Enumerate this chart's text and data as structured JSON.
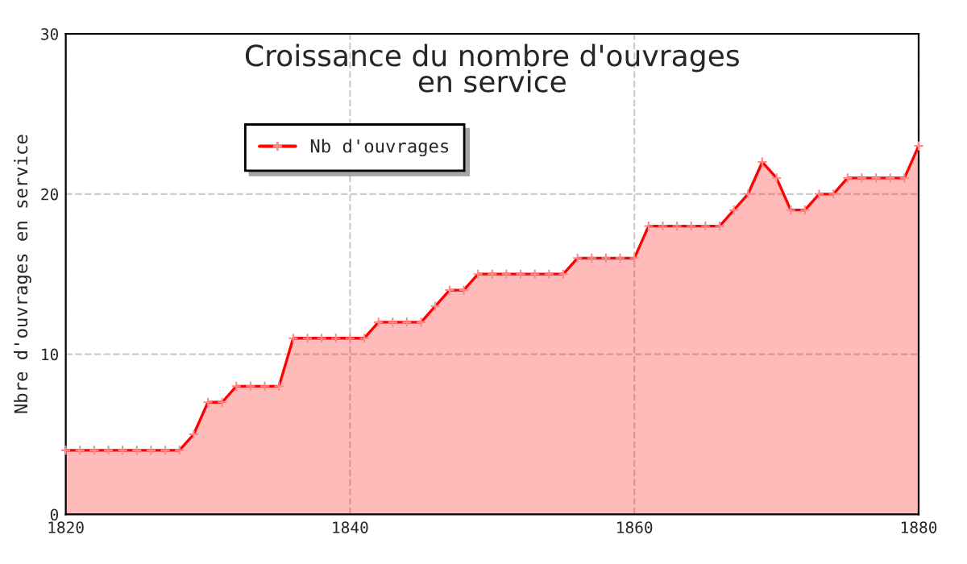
{
  "chart_data": {
    "type": "area",
    "title": "Croissance du nombre d'ouvrages\nen service",
    "ylabel": "Nbre d'ouvrages en service",
    "x": [
      1820,
      1821,
      1822,
      1823,
      1824,
      1825,
      1826,
      1827,
      1828,
      1829,
      1830,
      1831,
      1832,
      1833,
      1834,
      1835,
      1836,
      1837,
      1838,
      1839,
      1840,
      1841,
      1842,
      1843,
      1844,
      1845,
      1846,
      1847,
      1848,
      1849,
      1850,
      1851,
      1852,
      1853,
      1854,
      1855,
      1856,
      1857,
      1858,
      1859,
      1860,
      1861,
      1862,
      1863,
      1864,
      1865,
      1866,
      1867,
      1868,
      1869,
      1870,
      1871,
      1872,
      1873,
      1874,
      1875,
      1876,
      1877,
      1878,
      1879,
      1880
    ],
    "series": [
      {
        "name": "Nb d'ouvrages",
        "color": "#ff0000",
        "values": [
          4,
          4,
          4,
          4,
          4,
          4,
          4,
          4,
          4,
          5,
          7,
          7,
          8,
          8,
          8,
          8,
          11,
          11,
          11,
          11,
          11,
          11,
          12,
          12,
          12,
          12,
          13,
          14,
          14,
          15,
          15,
          15,
          15,
          15,
          15,
          15,
          16,
          16,
          16,
          16,
          16,
          18,
          18,
          18,
          18,
          18,
          18,
          19,
          20,
          22,
          21,
          19,
          19,
          20,
          20,
          21,
          21,
          21,
          21,
          21,
          23
        ]
      }
    ],
    "xlim": [
      1820,
      1880
    ],
    "xticks": [
      1820,
      1840,
      1860,
      1880
    ],
    "ylim": [
      0,
      30
    ],
    "yticks": [
      0,
      10,
      20,
      30
    ],
    "grid": true,
    "legend": "top left",
    "marker": "cross",
    "line_style": "solid"
  }
}
